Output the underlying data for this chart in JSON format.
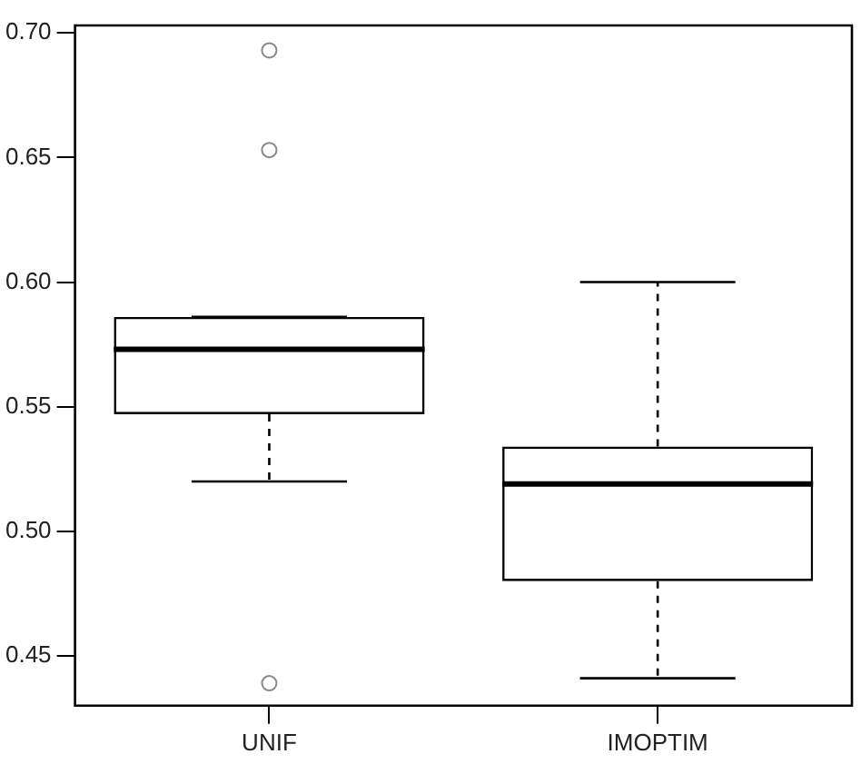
{
  "chart_data": {
    "type": "box",
    "categories": [
      "UNIF",
      "IMOPTIM"
    ],
    "boxes": [
      {
        "low": 0.52,
        "q1": 0.547,
        "median": 0.573,
        "q3": 0.586,
        "high": 0.586,
        "outliers": [
          0.693,
          0.653,
          0.439
        ]
      },
      {
        "low": 0.441,
        "q1": 0.48,
        "median": 0.519,
        "q3": 0.534,
        "high": 0.6
      }
    ],
    "ylim": [
      0.43,
      0.703
    ],
    "yticks": [
      0.45,
      {
        "value": 0.5,
        "label": "0.50"
      },
      0.55,
      {
        "value": 0.6,
        "label": "0.60"
      },
      0.65,
      {
        "value": 0.7,
        "label": "0.70"
      }
    ],
    "grid": false,
    "legend": false
  }
}
